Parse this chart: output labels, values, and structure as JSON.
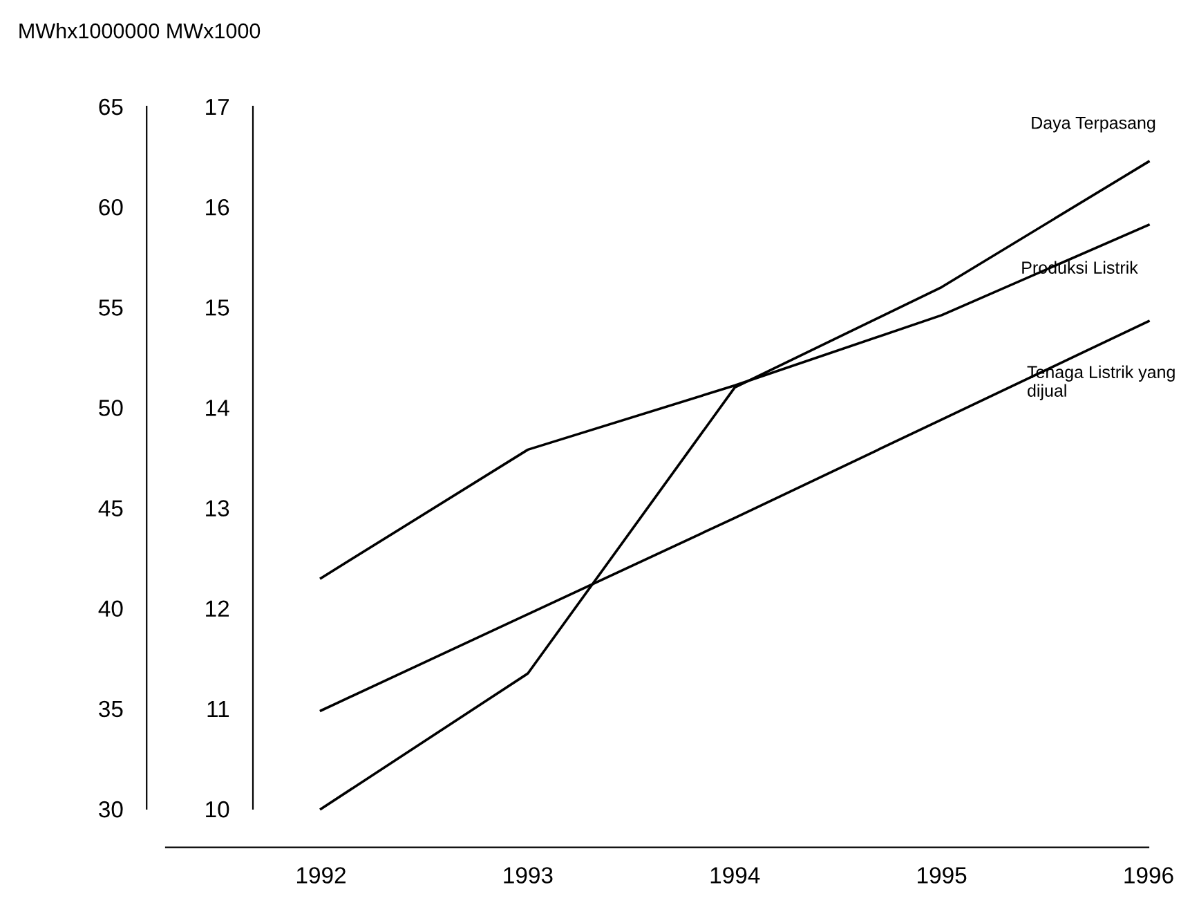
{
  "chart_data": {
    "type": "line",
    "ylabel": "MWhx1000000",
    "y2label": "MWx1000",
    "categories": [
      "1992",
      "1993",
      "1994",
      "1995",
      "1996"
    ],
    "series": [
      {
        "name": "Daya Terpasang",
        "color": "#000000",
        "axis": "y2",
        "values": [
          10,
          11.35,
          14.2,
          15.2,
          16.45
        ]
      },
      {
        "name": "Produksi Listrik",
        "color": "#000000",
        "values": [
          41.5,
          47.9,
          51.1,
          54.6,
          59.1
        ]
      },
      {
        "name": "Tenaga Listrik yang dijual",
        "color": "#000000",
        "values": [
          34.9,
          39.7,
          44.5,
          49.4,
          54.3
        ]
      }
    ],
    "ylim": [
      30,
      65
    ],
    "yticks": [
      30,
      35,
      40,
      45,
      50,
      55,
      60,
      65
    ],
    "y2lim": [
      10,
      17
    ],
    "y2ticks": [
      10,
      11,
      12,
      13,
      14,
      15,
      16,
      17
    ],
    "grid": false,
    "legend": false,
    "marker": "none",
    "line_style": "solid"
  }
}
